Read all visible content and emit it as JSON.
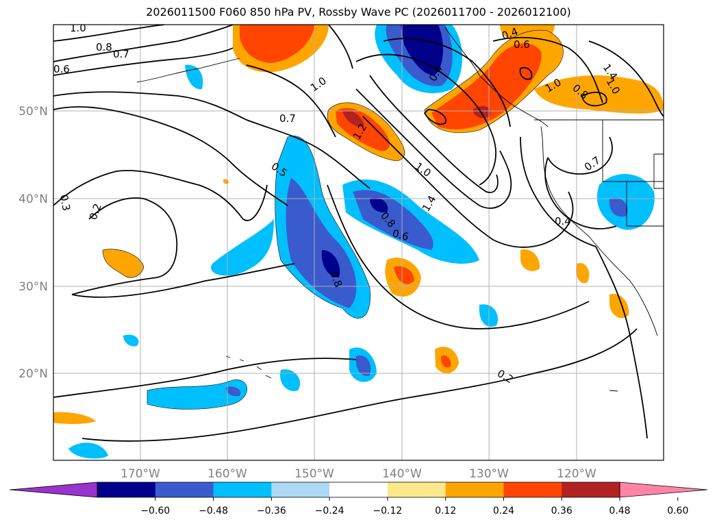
{
  "title": "2026011500 F060 850 hPa PV, Rossby Wave PC (2026011700 - 2026012100)",
  "axes": {
    "lon_ticks": [
      "170°W",
      "160°W",
      "150°W",
      "140°W",
      "130°W",
      "120°W"
    ],
    "lat_ticks": [
      "50°N",
      "40°N",
      "30°N",
      "20°N"
    ],
    "tick_color": "#808080"
  },
  "colorbar": {
    "levels": [
      "−0.60",
      "−0.48",
      "−0.36",
      "−0.24",
      "−0.12",
      "0.12",
      "0.24",
      "0.36",
      "0.48",
      "0.60"
    ],
    "colors": [
      "#9a32cd",
      "#00008b",
      "#3a5bcd",
      "#00bfff",
      "#add8f6",
      "#ffffff",
      "#fde98c",
      "#ffa500",
      "#ff4500",
      "#b22222",
      "#ff85a8"
    ]
  },
  "contour_labels": [
    "1.0",
    "0.8",
    "0.7",
    "0.6",
    "1.0",
    "0.7",
    "0.5",
    "0.3",
    "0.2",
    "1.2",
    "1.0",
    "0.8",
    "0.6",
    "1.4",
    "0.4",
    "0.4",
    "0.6",
    "1.0",
    "0.8",
    "1.4",
    "1.0",
    "0.7",
    "0.4",
    "0.8",
    "0.2"
  ]
}
